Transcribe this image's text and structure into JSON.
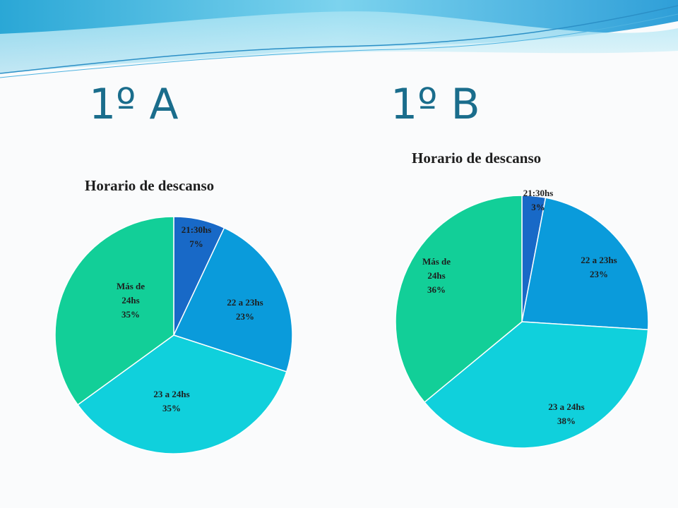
{
  "headings": {
    "left": "1º A",
    "right": "1º B"
  },
  "colors": {
    "21:30hs": "#1869c7",
    "22 a 23hs": "#0a9bdb",
    "23 a 24hs": "#10d0dc",
    "Más de 24hs": "#12cf98"
  },
  "chart_data": [
    {
      "type": "pie",
      "title": "Horario de descanso",
      "categories": [
        "21:30hs",
        "22 a 23hs",
        "23 a 24hs",
        "Más de 24hs"
      ],
      "values": [
        7,
        23,
        35,
        35
      ],
      "data_labels": [
        [
          "21:30hs",
          "7%"
        ],
        [
          "22 a 23hs",
          "23%"
        ],
        [
          "23 a 24hs",
          "35%"
        ],
        [
          "Más de",
          "24hs",
          "35%"
        ]
      ],
      "legend": "none"
    },
    {
      "type": "pie",
      "title": "Horario de descanso",
      "categories": [
        "21:30hs",
        "22 a 23hs",
        "23 a 24hs",
        "Más de 24hs"
      ],
      "values": [
        3,
        23,
        38,
        36
      ],
      "data_labels": [
        [
          "21:30hs",
          "3%"
        ],
        [
          "22 a 23hs",
          "23%"
        ],
        [
          "23 a 24hs",
          "38%"
        ],
        [
          "Más de",
          "24hs",
          "36%"
        ]
      ],
      "legend": "none"
    }
  ]
}
